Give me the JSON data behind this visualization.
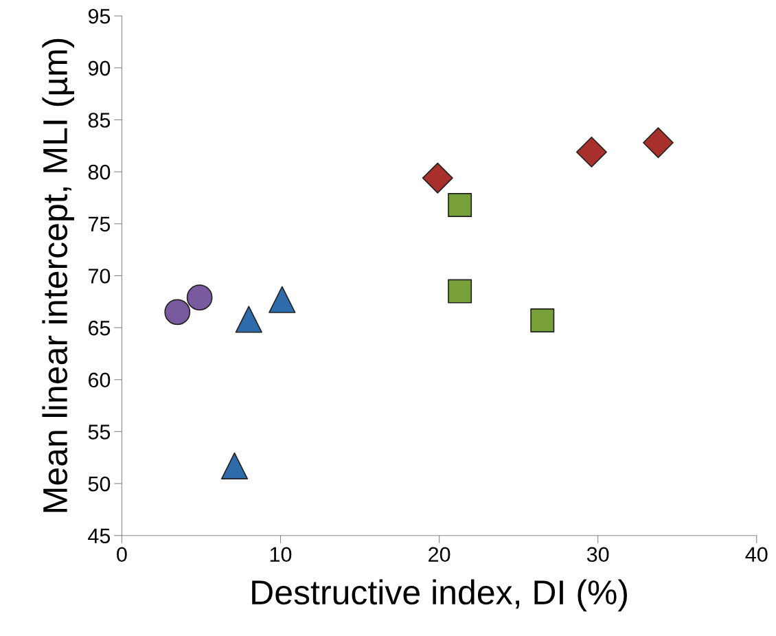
{
  "chart_data": {
    "type": "scatter",
    "xlabel": "Destructive index, DI (%)",
    "ylabel": "Mean linear intercept, MLI (µm)",
    "xlim": [
      0,
      40
    ],
    "xticks": [
      0,
      10,
      20,
      30,
      40
    ],
    "ylim": [
      45,
      95
    ],
    "yticks": [
      45,
      50,
      55,
      60,
      65,
      70,
      75,
      80,
      85,
      90,
      95
    ],
    "grid": false,
    "legend": false,
    "series": [
      {
        "color": "#7a5a9e",
        "marker": "circle",
        "x": [
          3.5,
          4.9
        ],
        "values": [
          66.5,
          67.9
        ]
      },
      {
        "color": "#2e6bab",
        "marker": "triangle",
        "x": [
          7.1,
          8.0,
          10.1
        ],
        "values": [
          51.7,
          65.8,
          67.7
        ]
      },
      {
        "color": "#77a03b",
        "marker": "square",
        "x": [
          21.3,
          21.3,
          26.5
        ],
        "values": [
          76.8,
          68.5,
          65.7
        ]
      },
      {
        "color": "#a8302c",
        "marker": "diamond",
        "x": [
          19.9,
          29.6,
          33.8
        ],
        "values": [
          79.4,
          81.9,
          82.8
        ]
      }
    ]
  }
}
